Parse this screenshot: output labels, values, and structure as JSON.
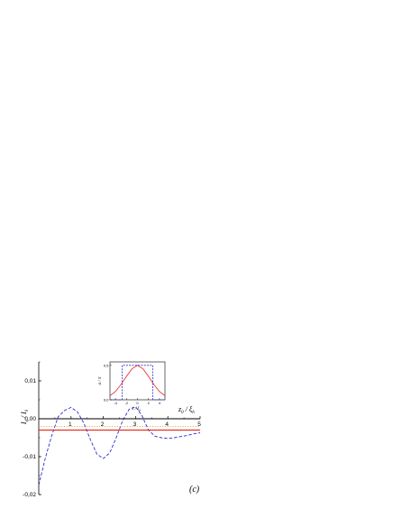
{
  "chart_data": [
    {
      "type": "line",
      "panel_label": "(c)",
      "ylabel": "I / I",
      "ylabel_sub": "0",
      "ylabel_pre_sub": "c",
      "xlabel": "z / ξ",
      "xlabel_sub1": "0",
      "xlabel_sub2": "h",
      "xlim": [
        0,
        5
      ],
      "ylim": [
        -0.02,
        0.015
      ],
      "y_ticks": [
        0.01,
        0.0,
        -0.01,
        -0.02
      ],
      "y_tick_labels": [
        "0,01",
        "0,00",
        "-0,01",
        "-0,02"
      ],
      "x_ticks": [
        1,
        2,
        3,
        4,
        5
      ],
      "x_tick_labels": [
        "1",
        "2",
        "3",
        "4",
        "5"
      ],
      "series": [
        {
          "style": "dashed",
          "color": "#2b2bd4",
          "x": [
            0,
            0.2,
            0.4,
            0.6,
            0.8,
            1.0,
            1.2,
            1.4,
            1.6,
            1.8,
            2.0,
            2.2,
            2.4,
            2.6,
            2.8,
            3.0,
            3.2,
            3.4,
            3.6,
            3.8,
            4.0,
            4.2,
            4.4,
            4.6,
            4.8,
            5.0
          ],
          "y": [
            -0.0175,
            -0.0105,
            -0.0045,
            0.0005,
            0.0022,
            0.003,
            0.0018,
            -0.0012,
            -0.0055,
            -0.0093,
            -0.0105,
            -0.009,
            -0.005,
            -0.0005,
            0.0025,
            0.0032,
            0.0008,
            -0.003,
            -0.0046,
            -0.005,
            -0.0052,
            -0.005,
            -0.0047,
            -0.0044,
            -0.004,
            -0.0037
          ]
        },
        {
          "style": "solid",
          "color": "#e8201c",
          "x": [
            0,
            5
          ],
          "y": [
            -0.003,
            -0.003
          ]
        },
        {
          "style": "dotted",
          "color": "#c8a800",
          "x": [
            0,
            5
          ],
          "y": [
            -0.002,
            -0.002
          ]
        },
        {
          "style": "solid",
          "color": "#000000",
          "x": [
            0,
            5
          ],
          "y": [
            0,
            0
          ]
        }
      ]
    },
    {
      "type": "line",
      "role": "inset",
      "ylabel": "α / π",
      "xlabel": "z / ξ",
      "xlabel_sub": "h",
      "xlim": [
        -5,
        5
      ],
      "ylim": [
        0,
        0.55
      ],
      "y_ticks": [
        0,
        0.5
      ],
      "y_tick_labels": [
        "0,0",
        "0,5"
      ],
      "x_ticks": [
        -4,
        -2,
        0,
        2,
        4
      ],
      "x_tick_labels": [
        "-4",
        "-2",
        "0",
        "2",
        "4"
      ],
      "series": [
        {
          "style": "solid",
          "color": "#e8201c",
          "x": [
            -5,
            -4,
            -3,
            -2,
            -1,
            0,
            1,
            2,
            3,
            4,
            5
          ],
          "y": [
            0.06,
            0.12,
            0.22,
            0.34,
            0.45,
            0.5,
            0.45,
            0.34,
            0.22,
            0.12,
            0.06
          ]
        },
        {
          "style": "dashed",
          "color": "#2b2bd4",
          "x": [
            -5,
            -2.8,
            -2.8,
            2.8,
            2.8,
            5
          ],
          "y": [
            0,
            0,
            0.5,
            0.5,
            0,
            0
          ]
        }
      ]
    }
  ]
}
